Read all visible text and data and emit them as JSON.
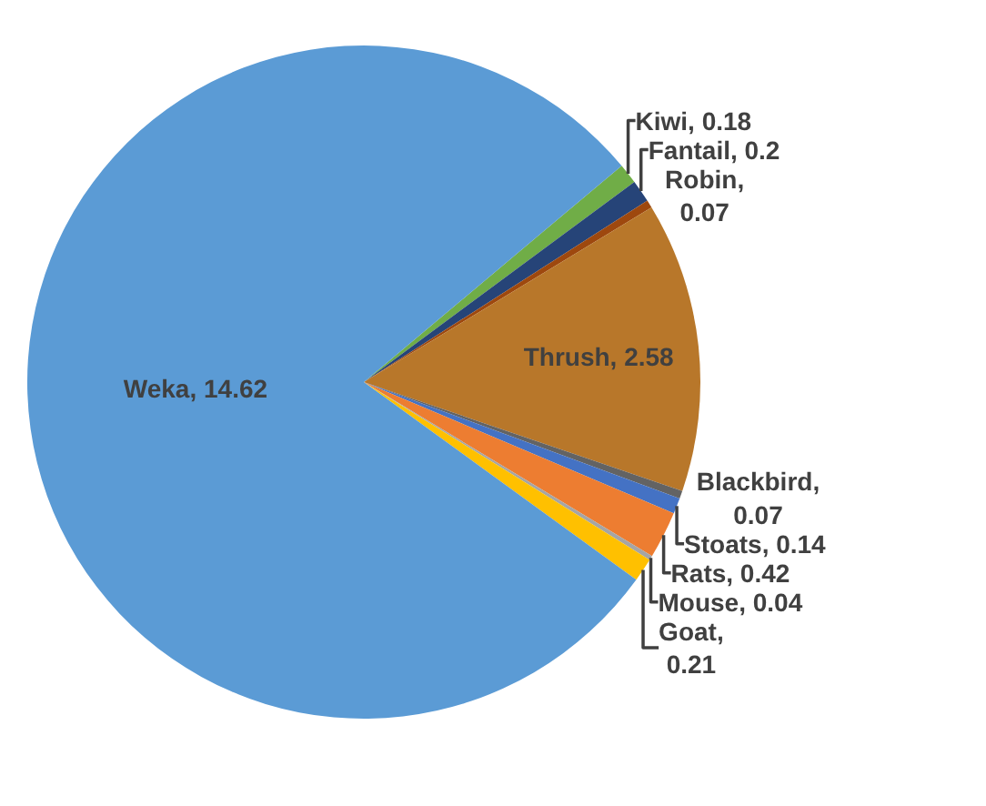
{
  "chart_data": {
    "type": "pie",
    "categories": [
      "Kiwi, 0.18",
      "Fantail, 0.2",
      "Robin, 0.07",
      "Thrush, 2.58",
      "Blackbird, 0.07",
      "Stoats, 0.14",
      "Rats, 0.42",
      "Mouse, 0.04",
      "Goat, 0.21",
      "Weka, 14.62"
    ],
    "values": [
      0.18,
      0.2,
      0.07,
      2.58,
      0.07,
      0.14,
      0.42,
      0.04,
      0.21,
      14.62
    ],
    "colors": [
      "#70ad47",
      "#264478",
      "#9e480e",
      "#b8772a",
      "#636363",
      "#4472c4",
      "#ed7d31",
      "#a5a5a5",
      "#ffc000",
      "#5b9bd5"
    ],
    "legend": false
  }
}
